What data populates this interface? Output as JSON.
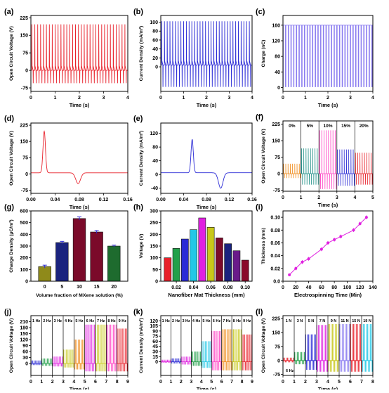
{
  "colors": {
    "red": "#e8202a",
    "blue": "#2b2bd6",
    "purple": "#8a7cf0",
    "magenta": "#e020e0",
    "orange": "#f08a18",
    "teal": "#1f8f86",
    "pink": "#ff44c4",
    "olive": "#8f8a1a",
    "green": "#22a04a",
    "navy": "#1a237e",
    "maroon": "#7b0a2a",
    "darkgreen": "#1e6b2e",
    "cyan": "#22c8e6",
    "lime": "#c8c81a"
  },
  "chart_data": [
    {
      "id": "a",
      "type": "line",
      "panel_label": "(a)",
      "xlabel": "Time (s)",
      "ylabel": "Open Circuit Voltage (V)",
      "xlim": [
        0,
        4
      ],
      "ylim": [
        -90,
        235
      ],
      "xticks": [
        "0",
        "1",
        "2",
        "3",
        "4"
      ],
      "yticks": [
        "-75",
        "0",
        "75",
        "150",
        "225"
      ],
      "series": [
        {
          "kind": "pulses",
          "baseline": 0,
          "peak": 197,
          "trough": -55,
          "period": 0.12,
          "color": "#e8202a"
        }
      ]
    },
    {
      "id": "b",
      "type": "line",
      "panel_label": "(b)",
      "xlabel": "Time (s)",
      "ylabel": "Current Density (mA/m²)",
      "xlim": [
        0,
        4
      ],
      "ylim": [
        -55,
        115
      ],
      "xticks": [
        "0",
        "1",
        "2",
        "3",
        "4"
      ],
      "yticks": [
        "0",
        "20",
        "40",
        "60",
        "80",
        "100"
      ],
      "series": [
        {
          "kind": "pulses",
          "baseline": 4,
          "peak": 102,
          "trough": -45,
          "period": 0.12,
          "color": "#2b2bd6"
        }
      ]
    },
    {
      "id": "c",
      "type": "line",
      "panel_label": "(c)",
      "xlabel": "Time (s)",
      "ylabel": "Charge (nC)",
      "xlim": [
        0,
        4
      ],
      "ylim": [
        -10,
        185
      ],
      "xticks": [
        "0",
        "1",
        "2",
        "3",
        "4"
      ],
      "yticks": [
        "0",
        "40",
        "80",
        "120",
        "160"
      ],
      "series": [
        {
          "kind": "square",
          "baseline": 2,
          "peak": 160,
          "period": 0.12,
          "color": "#8a7cf0"
        }
      ]
    },
    {
      "id": "d",
      "type": "line",
      "panel_label": "(d)",
      "xlabel": "Time (s)",
      "ylabel": "Open Circuit Voltage (V)",
      "xlim": [
        0,
        0.16
      ],
      "ylim": [
        -90,
        235
      ],
      "xticks": [
        "0.00",
        "0.04",
        "0.08",
        "0.12",
        "0.16"
      ],
      "yticks": [
        "-75",
        "0",
        "75",
        "150",
        "225"
      ],
      "series": [
        {
          "kind": "single",
          "baseline": 5,
          "peak": 197,
          "peak_x": 0.022,
          "trough": -45,
          "trough_x": 0.078,
          "color": "#e8202a"
        }
      ]
    },
    {
      "id": "e",
      "type": "line",
      "panel_label": "(e)",
      "xlabel": "Time (s)",
      "ylabel": "Current Density (mA/m²)",
      "xlim": [
        0,
        0.16
      ],
      "ylim": [
        -55,
        150
      ],
      "xticks": [
        "0.00",
        "0.04",
        "0.08",
        "0.12",
        "0.16"
      ],
      "yticks": [
        "-40",
        "0",
        "40",
        "80",
        "120"
      ],
      "series": [
        {
          "kind": "single",
          "baseline": 5,
          "peak": 102,
          "peak_x": 0.055,
          "trough": -40,
          "trough_x": 0.105,
          "color": "#2b2bd6"
        }
      ]
    },
    {
      "id": "f",
      "type": "line",
      "panel_label": "(f)",
      "xlabel": "Time (s)",
      "ylabel": "Open Circuit Voltage (V)",
      "xlim": [
        0,
        5
      ],
      "ylim": [
        -80,
        240
      ],
      "xticks": [
        "0",
        "1",
        "2",
        "3",
        "4",
        "5"
      ],
      "yticks": [
        "-75",
        "0",
        "75",
        "150",
        "225"
      ],
      "segment_labels": [
        "0%",
        "5%",
        "10%",
        "15%",
        "20%"
      ],
      "segments": [
        {
          "from": 0,
          "to": 1,
          "peak": 45,
          "trough": -20,
          "color": "#f08a18"
        },
        {
          "from": 1,
          "to": 2,
          "peak": 115,
          "trough": -50,
          "color": "#1f8f86"
        },
        {
          "from": 2,
          "to": 3,
          "peak": 197,
          "trough": -70,
          "color": "#ff44c4"
        },
        {
          "from": 3,
          "to": 4,
          "peak": 110,
          "trough": -55,
          "color": "#2b2bd6"
        },
        {
          "from": 4,
          "to": 5,
          "peak": 95,
          "trough": -50,
          "color": "#e8202a"
        }
      ]
    },
    {
      "id": "g",
      "type": "bar",
      "panel_label": "(g)",
      "xlabel": "Volume fraction of MXene solution (%)",
      "ylabel": "Charge Density (μC/m²)",
      "categories": [
        "0",
        "5",
        "10",
        "15",
        "20"
      ],
      "values": [
        125,
        330,
        535,
        420,
        300
      ],
      "errors": [
        12,
        10,
        14,
        12,
        8
      ],
      "colors": [
        "#8f8a1a",
        "#1a237e",
        "#7b0a2a",
        "#7b0a2a",
        "#1e6b2e"
      ],
      "ylim": [
        0,
        600
      ],
      "yticks": [
        "0",
        "100",
        "200",
        "300",
        "400",
        "500",
        "600"
      ]
    },
    {
      "id": "h",
      "type": "bar",
      "panel_label": "(h)",
      "xlabel": "Nanofiber Mat Thickness (mm)",
      "ylabel": "Voltage (V)",
      "categories": [
        "0.01",
        "0.02",
        "0.03",
        "0.04",
        "0.05",
        "0.06",
        "0.07",
        "0.08",
        "0.09",
        "0.10"
      ],
      "values": [
        100,
        140,
        180,
        220,
        270,
        230,
        185,
        160,
        130,
        90
      ],
      "colors": [
        "#e8202a",
        "#22a04a",
        "#2b2bd6",
        "#22c8e6",
        "#e020e0",
        "#c8c81a",
        "#7b0a2a",
        "#1a237e",
        "#6a1a8a",
        "#8a0a2a"
      ],
      "ylim": [
        0,
        300
      ],
      "yticks": [
        "0",
        "50",
        "100",
        "150",
        "200",
        "250",
        "300"
      ],
      "xticks": [
        "0.02",
        "0.04",
        "0.06",
        "0.08",
        "0.10"
      ]
    },
    {
      "id": "i",
      "type": "scatter",
      "panel_label": "(i)",
      "xlabel": "Electrospinning Time (Min)",
      "ylabel": "Thickness (mm)",
      "x": [
        10,
        20,
        30,
        40,
        60,
        70,
        80,
        90,
        110,
        120,
        130
      ],
      "y": [
        0.01,
        0.02,
        0.03,
        0.035,
        0.05,
        0.06,
        0.065,
        0.07,
        0.08,
        0.09,
        0.1
      ],
      "errors": [
        0.002,
        0.003,
        0.003,
        0.003,
        0.003,
        0.003,
        0.003,
        0.003,
        0.003,
        0.003,
        0.003
      ],
      "color": "#e020e0",
      "xlim": [
        0,
        140
      ],
      "ylim": [
        0,
        0.11
      ],
      "xticks": [
        "0",
        "20",
        "40",
        "60",
        "80",
        "100",
        "120",
        "140"
      ],
      "yticks": [
        "0.0",
        "0.02",
        "0.04",
        "0.06",
        "0.08",
        "0.10"
      ]
    },
    {
      "id": "j",
      "type": "line",
      "panel_label": "(j)",
      "xlabel": "Time (s)",
      "ylabel": "Open Circuit Voltage (V)",
      "xlim": [
        0,
        9
      ],
      "ylim": [
        -60,
        240
      ],
      "xticks": [
        "0",
        "1",
        "2",
        "3",
        "4",
        "5",
        "6",
        "7",
        "8",
        "9"
      ],
      "yticks": [
        "0",
        "30",
        "60",
        "90",
        "120",
        "150",
        "180",
        "210"
      ],
      "segment_labels": [
        "1 Hz",
        "2 Hz",
        "3 Hz",
        "4 Hz",
        "5 Hz",
        "6 Hz",
        "7 Hz",
        "8 Hz",
        "9 Hz"
      ],
      "segments": [
        {
          "from": 0,
          "to": 1,
          "peak": 15,
          "trough": -8,
          "color": "#2b2bd6"
        },
        {
          "from": 1,
          "to": 2,
          "peak": 25,
          "trough": -12,
          "color": "#22a04a"
        },
        {
          "from": 2,
          "to": 3,
          "peak": 35,
          "trough": -15,
          "color": "#e020e0"
        },
        {
          "from": 3,
          "to": 4,
          "peak": 70,
          "trough": -20,
          "color": "#c8c81a"
        },
        {
          "from": 4,
          "to": 5,
          "peak": 120,
          "trough": -30,
          "color": "#f08a18"
        },
        {
          "from": 5,
          "to": 6,
          "peak": 195,
          "trough": -40,
          "color": "#e020e0"
        },
        {
          "from": 6,
          "to": 7,
          "peak": 195,
          "trough": -40,
          "color": "#c8c81a"
        },
        {
          "from": 7,
          "to": 8,
          "peak": 195,
          "trough": -40,
          "color": "#ff44c4"
        },
        {
          "from": 8,
          "to": 9,
          "peak": 175,
          "trough": -40,
          "color": "#e8202a"
        }
      ]
    },
    {
      "id": "k",
      "type": "line",
      "panel_label": "(k)",
      "xlabel": "Time (s)",
      "ylabel": "Current Density (mA/m²)",
      "xlim": [
        0,
        9
      ],
      "ylim": [
        -40,
        135
      ],
      "xticks": [
        "0",
        "1",
        "2",
        "3",
        "4",
        "5",
        "6",
        "7",
        "8",
        "9"
      ],
      "yticks": [
        "0",
        "15",
        "30",
        "45",
        "60",
        "75",
        "90",
        "105",
        "120"
      ],
      "segment_labels": [
        "1 Hz",
        "2 Hz",
        "3 Hz",
        "4 Hz",
        "5 Hz",
        "6 Hz",
        "7 Hz",
        "8 Hz",
        "9 Hz"
      ],
      "segments": [
        {
          "from": 0,
          "to": 1,
          "peak": 6,
          "trough": -3,
          "color": "#e020e0"
        },
        {
          "from": 1,
          "to": 2,
          "peak": 10,
          "trough": -5,
          "color": "#2b2bd6"
        },
        {
          "from": 2,
          "to": 3,
          "peak": 15,
          "trough": -8,
          "color": "#e020e0"
        },
        {
          "from": 3,
          "to": 4,
          "peak": 30,
          "trough": -12,
          "color": "#22a04a"
        },
        {
          "from": 4,
          "to": 5,
          "peak": 60,
          "trough": -18,
          "color": "#22c8e6"
        },
        {
          "from": 5,
          "to": 6,
          "peak": 90,
          "trough": -25,
          "color": "#ff44c4"
        },
        {
          "from": 6,
          "to": 7,
          "peak": 95,
          "trough": -25,
          "color": "#f08a18"
        },
        {
          "from": 7,
          "to": 8,
          "peak": 95,
          "trough": -25,
          "color": "#c8c81a"
        },
        {
          "from": 8,
          "to": 9,
          "peak": 80,
          "trough": -25,
          "color": "#e8202a"
        }
      ]
    },
    {
      "id": "l",
      "type": "line",
      "panel_label": "(l)",
      "xlabel": "Time (s)",
      "ylabel": "Open Circuit Voltage (V)",
      "xlim": [
        0,
        8
      ],
      "ylim": [
        -80,
        240
      ],
      "xticks": [
        "0",
        "1",
        "2",
        "3",
        "4",
        "5",
        "6",
        "7",
        "8"
      ],
      "yticks": [
        "-75",
        "0",
        "75",
        "150",
        "225"
      ],
      "segment_labels": [
        "1 N",
        "3 N",
        "5 N",
        "7 N",
        "9 N",
        "11 N",
        "15 N",
        "19 N"
      ],
      "annotation": "6 Hz",
      "segments": [
        {
          "from": 0,
          "to": 1,
          "peak": 15,
          "trough": -10,
          "color": "#e8202a"
        },
        {
          "from": 1,
          "to": 2,
          "peak": 45,
          "trough": -20,
          "color": "#22a04a"
        },
        {
          "from": 2,
          "to": 3,
          "peak": 140,
          "trough": -50,
          "color": "#2b2bd6"
        },
        {
          "from": 3,
          "to": 4,
          "peak": 190,
          "trough": -60,
          "color": "#e020e0"
        },
        {
          "from": 4,
          "to": 5,
          "peak": 195,
          "trough": -60,
          "color": "#c8c81a"
        },
        {
          "from": 5,
          "to": 6,
          "peak": 195,
          "trough": -60,
          "color": "#8a7cf0"
        },
        {
          "from": 6,
          "to": 7,
          "peak": 195,
          "trough": -60,
          "color": "#e8202a"
        },
        {
          "from": 7,
          "to": 8,
          "peak": 195,
          "trough": -60,
          "color": "#22c8e6"
        }
      ]
    }
  ]
}
